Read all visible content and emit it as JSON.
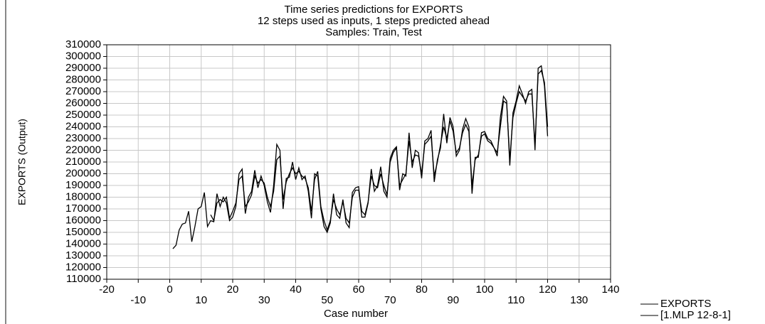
{
  "chart_data": {
    "type": "line",
    "title": "Time series predictions for EXPORTS",
    "subtitle": [
      "12 steps used as inputs, 1 steps predicted ahead",
      "Samples: Train, Test"
    ],
    "x_label": "Case number",
    "y_label": "EXPORTS (Output)",
    "x": [
      1,
      2,
      3,
      4,
      5,
      6,
      7,
      8,
      9,
      10,
      11,
      12,
      13,
      14,
      15,
      16,
      17,
      18,
      19,
      20,
      21,
      22,
      23,
      24,
      25,
      26,
      27,
      28,
      29,
      30,
      31,
      32,
      33,
      34,
      35,
      36,
      37,
      38,
      39,
      40,
      41,
      42,
      43,
      44,
      45,
      46,
      47,
      48,
      49,
      50,
      51,
      52,
      53,
      54,
      55,
      56,
      57,
      58,
      59,
      60,
      61,
      62,
      63,
      64,
      65,
      66,
      67,
      68,
      69,
      70,
      71,
      72,
      73,
      74,
      75,
      76,
      77,
      78,
      79,
      80,
      81,
      82,
      83,
      84,
      85,
      86,
      87,
      88,
      89,
      90,
      91,
      92,
      93,
      94,
      95,
      96,
      97,
      98,
      99,
      100,
      101,
      102,
      103,
      104,
      105,
      106,
      107,
      108,
      109,
      110,
      111,
      112,
      113,
      114,
      115,
      116,
      117,
      118,
      119,
      120
    ],
    "series": [
      {
        "name": "EXPORTS",
        "color": "#000000",
        "values": [
          136000,
          139000,
          152000,
          157000,
          158000,
          168000,
          142000,
          155000,
          170000,
          172000,
          184000,
          155000,
          160000,
          159000,
          183000,
          172000,
          180000,
          175000,
          160000,
          163000,
          172000,
          200000,
          204000,
          166000,
          180000,
          185000,
          203000,
          188000,
          198000,
          190000,
          176000,
          167000,
          190000,
          225000,
          220000,
          170000,
          196000,
          197000,
          210000,
          195000,
          205000,
          195000,
          198000,
          185000,
          162000,
          200000,
          198000,
          170000,
          155000,
          150000,
          158000,
          183000,
          165000,
          162000,
          178000,
          158000,
          154000,
          184000,
          188000,
          189000,
          163000,
          163000,
          175000,
          204000,
          185000,
          190000,
          206000,
          185000,
          180000,
          213000,
          220000,
          223000,
          186000,
          200000,
          198000,
          235000,
          205000,
          220000,
          218000,
          196000,
          228000,
          230000,
          237000,
          193000,
          212000,
          222000,
          251000,
          226000,
          248000,
          240000,
          215000,
          220000,
          238000,
          247000,
          240000,
          183000,
          214000,
          214000,
          235000,
          236000,
          230000,
          228000,
          222000,
          215000,
          248000,
          266000,
          262000,
          207000,
          252000,
          262000,
          275000,
          268000,
          260000,
          270000,
          272000,
          220000,
          290000,
          292000,
          275000,
          232000
        ]
      },
      {
        "name": "[1.MLP 12-8-1]",
        "color": "#000000",
        "values": [
          null,
          null,
          null,
          null,
          null,
          null,
          null,
          null,
          null,
          null,
          null,
          null,
          165000,
          160000,
          175000,
          178000,
          176000,
          180000,
          162000,
          168000,
          175000,
          195000,
          198000,
          172000,
          176000,
          182000,
          198000,
          192000,
          195000,
          192000,
          180000,
          172000,
          185000,
          212000,
          215000,
          178000,
          193000,
          200000,
          205000,
          200000,
          202000,
          198000,
          196000,
          188000,
          168000,
          195000,
          202000,
          172000,
          160000,
          152000,
          160000,
          178000,
          170000,
          165000,
          176000,
          162000,
          158000,
          180000,
          186000,
          186000,
          168000,
          165000,
          176000,
          198000,
          190000,
          188000,
          200000,
          190000,
          182000,
          210000,
          218000,
          222000,
          190000,
          195000,
          200000,
          228000,
          210000,
          216000,
          215000,
          200000,
          225000,
          228000,
          232000,
          198000,
          210000,
          225000,
          240000,
          230000,
          245000,
          236000,
          218000,
          222000,
          235000,
          242000,
          236000,
          190000,
          212000,
          216000,
          232000,
          234000,
          228000,
          226000,
          222000,
          218000,
          240000,
          262000,
          260000,
          212000,
          248000,
          260000,
          270000,
          266000,
          262000,
          268000,
          268000,
          225000,
          285000,
          288000,
          278000,
          240000
        ]
      }
    ],
    "xlim": [
      -20,
      140
    ],
    "xticks": [
      -20,
      -10,
      0,
      10,
      20,
      30,
      40,
      50,
      60,
      70,
      80,
      90,
      100,
      110,
      120,
      130,
      140
    ],
    "ylim": [
      110000,
      310000
    ],
    "yticks": [
      110000,
      120000,
      130000,
      140000,
      150000,
      160000,
      170000,
      180000,
      190000,
      200000,
      210000,
      220000,
      230000,
      240000,
      250000,
      260000,
      270000,
      280000,
      290000,
      300000,
      310000
    ],
    "grid": true,
    "legend": "bottom-right"
  }
}
